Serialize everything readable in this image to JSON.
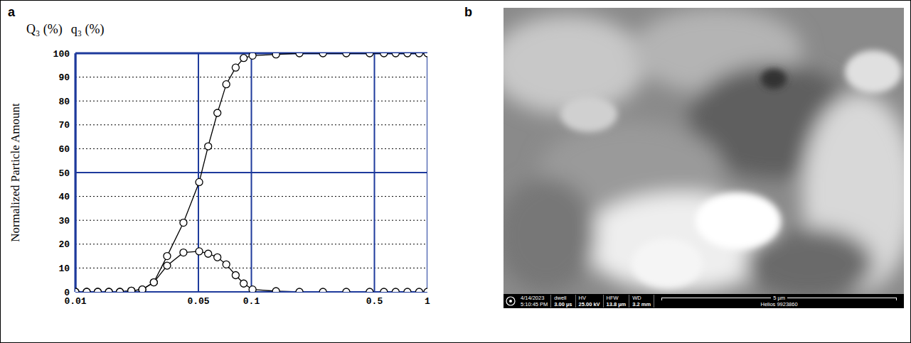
{
  "panel_labels": [
    "a",
    "b"
  ],
  "chart_data": {
    "type": "line",
    "ylabel": "Normalized Particle Amount",
    "x": [
      0.01,
      0.0116,
      0.0134,
      0.0155,
      0.0179,
      0.0208,
      0.024,
      0.0279,
      0.0332,
      0.0411,
      0.0505,
      0.0568,
      0.0641,
      0.072,
      0.0814,
      0.0904,
      0.1015,
      0.138,
      0.1875,
      0.255,
      0.346,
      0.47,
      0.566,
      0.66,
      0.77,
      0.898,
      1
    ],
    "series": [
      {
        "name": "Q₃ (%)",
        "color": "#000000",
        "marker": "circle",
        "values": [
          0,
          0,
          0,
          0,
          0,
          0.5,
          1,
          4,
          15,
          29,
          46,
          61,
          75,
          87,
          94,
          98,
          99,
          99.5,
          100,
          100,
          100,
          100,
          100,
          100,
          100,
          100,
          100
        ]
      },
      {
        "name": "q₃ (%)",
        "color": "#000000",
        "marker": "circle",
        "values": [
          0,
          0,
          0,
          0,
          0,
          0.5,
          1,
          4,
          11,
          16.5,
          17,
          16,
          14.5,
          11.5,
          7,
          3.5,
          1,
          0.3,
          0,
          0,
          0,
          0,
          0,
          0,
          0,
          0,
          0
        ]
      }
    ],
    "xlim": [
      0.01,
      1
    ],
    "ylim": [
      0,
      100
    ],
    "xticks": [
      0.01,
      0.05,
      0.1,
      0.5,
      1
    ],
    "yticks": [
      0,
      10,
      20,
      30,
      40,
      50,
      60,
      70,
      80,
      90,
      100
    ],
    "log": "x",
    "grid": true
  },
  "sem_image": {
    "date": "4/14/2023",
    "time": "5:10:45 PM",
    "fields": [
      {
        "label": "dwell",
        "value": "3.00 µs"
      },
      {
        "label": "HV",
        "value": "25.00 kV"
      },
      {
        "label": "HFW",
        "value": "13.8 µm"
      },
      {
        "label": "WD",
        "value": "3.2 mm"
      }
    ],
    "scale_bar": "5 µm",
    "instrument": "Helios 9923860"
  }
}
